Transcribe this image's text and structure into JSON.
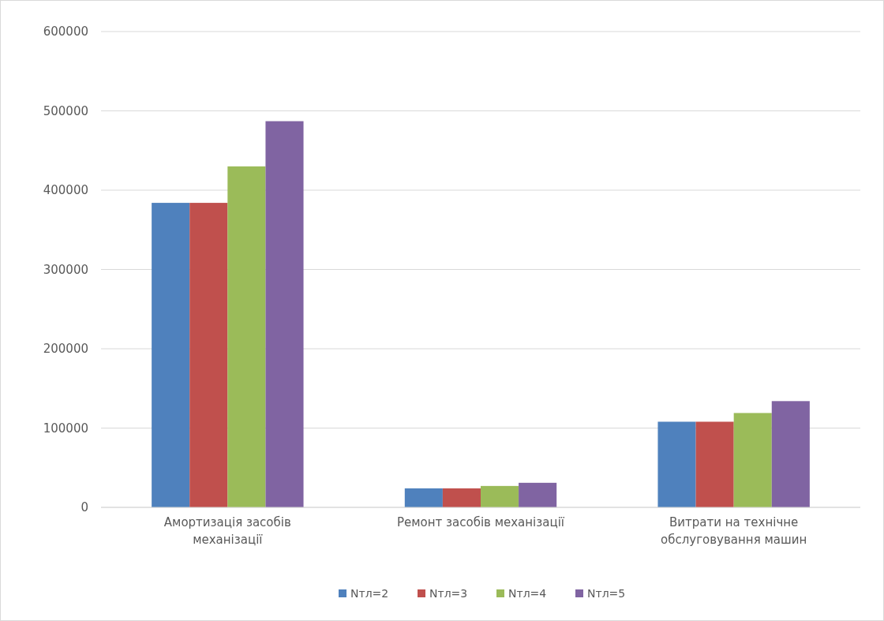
{
  "chart_data": {
    "type": "bar",
    "categories": [
      "Амортизація засобів механізації",
      "Ремонт засобів механізації",
      "Витрати на технічне обслуговування машин"
    ],
    "series": [
      {
        "name": "Nтл=2",
        "color": "#4f81bd",
        "values": [
          384000,
          24000,
          108000
        ]
      },
      {
        "name": "Nтл=3",
        "color": "#c0504d",
        "values": [
          384000,
          24000,
          108000
        ]
      },
      {
        "name": "Nтл=4",
        "color": "#9bbb59",
        "values": [
          430000,
          27000,
          119000
        ]
      },
      {
        "name": "Nтл=5",
        "color": "#8064a2",
        "values": [
          487000,
          31000,
          134000
        ]
      }
    ],
    "ylim": [
      0,
      600000
    ],
    "yticks": [
      0,
      100000,
      200000,
      300000,
      400000,
      500000,
      600000
    ],
    "grid": "y",
    "legend": "bottom"
  }
}
